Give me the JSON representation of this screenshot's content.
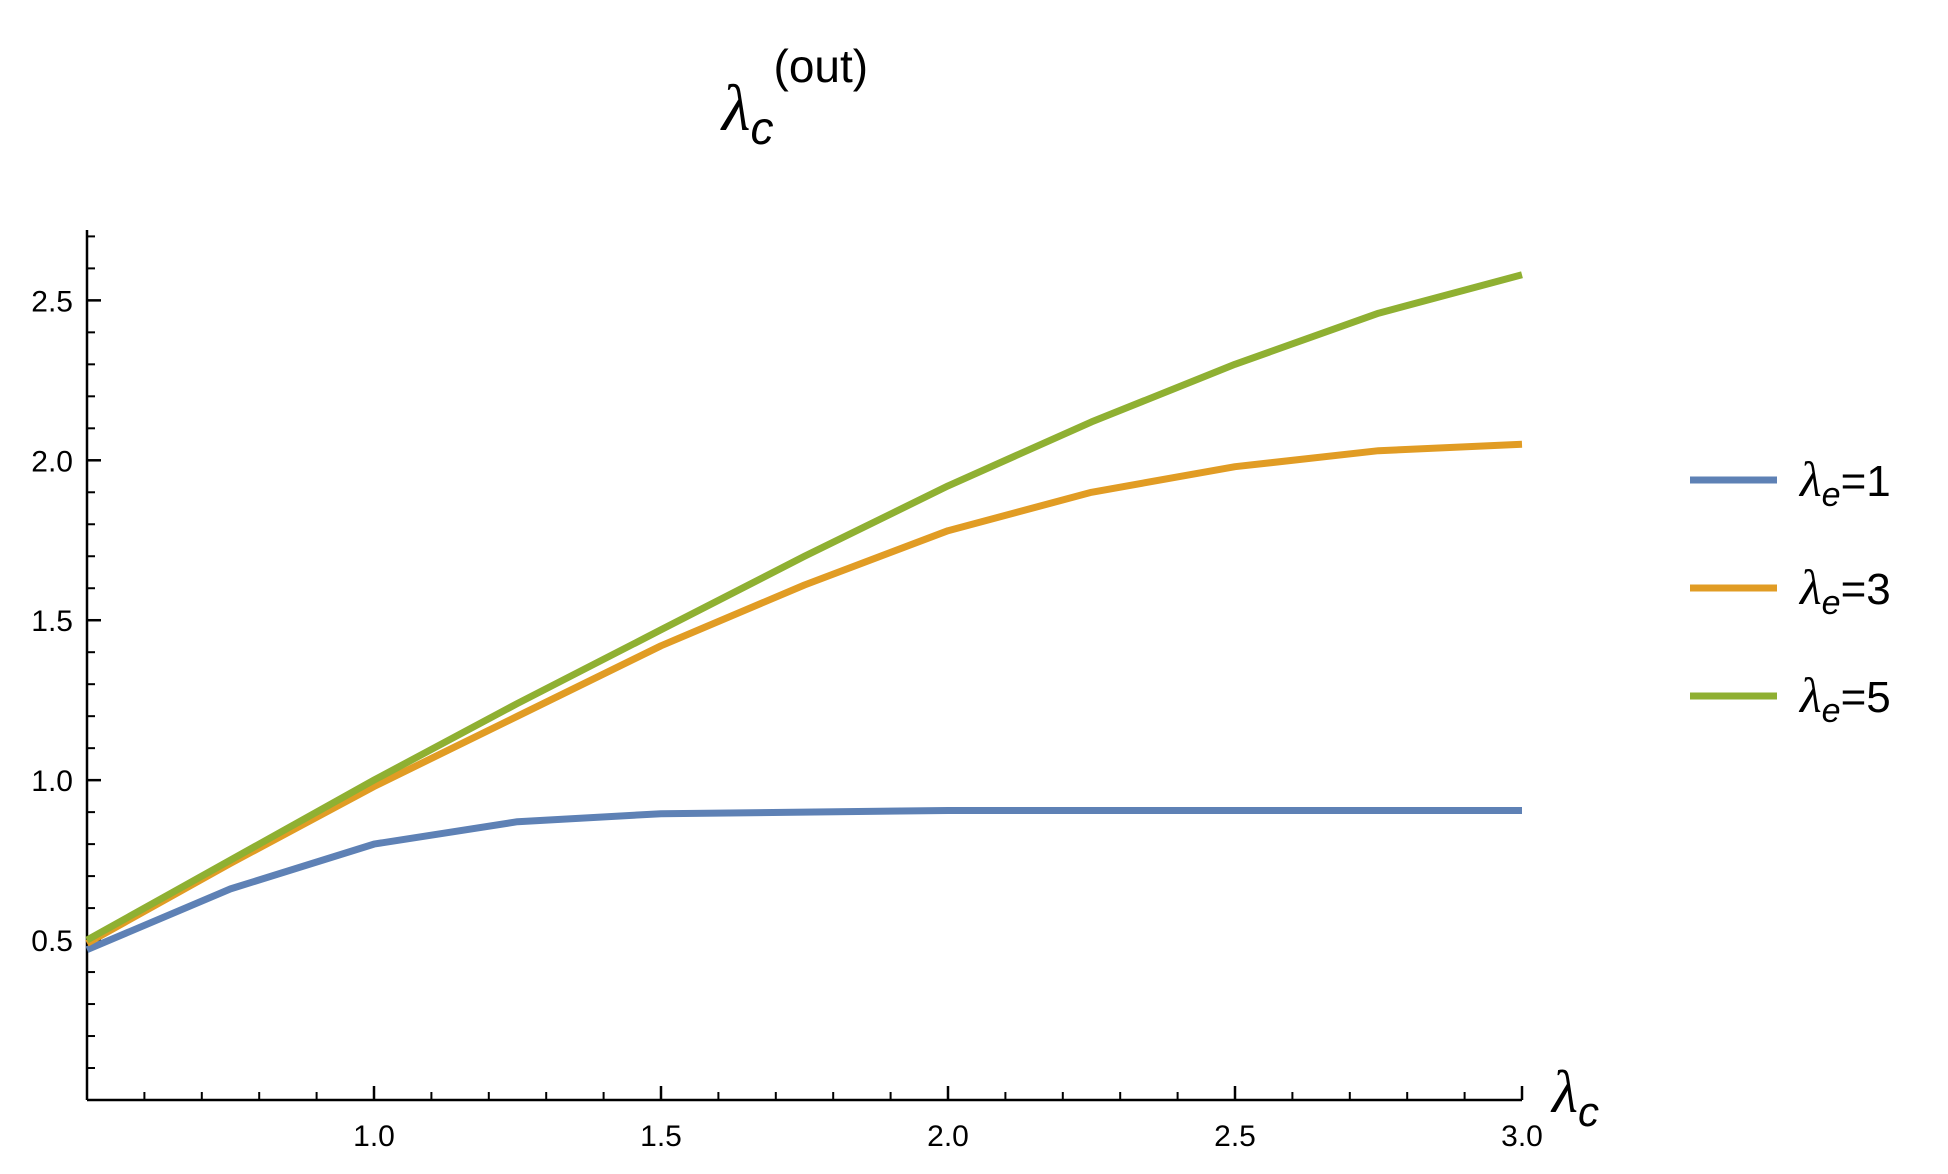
{
  "chart_data": {
    "type": "line",
    "title": {
      "symbol": "λ",
      "subscript": "c",
      "superscript": "(out)"
    },
    "xlabel": {
      "symbol": "λ",
      "subscript": "c"
    },
    "ylabel": "",
    "xlim": [
      0.5,
      3.0
    ],
    "ylim": [
      0.0,
      2.72
    ],
    "x_major_ticks": [
      1.0,
      1.5,
      2.0,
      2.5,
      3.0
    ],
    "x_tick_labels": [
      "1.0",
      "1.5",
      "2.0",
      "2.5",
      "3.0"
    ],
    "y_major_ticks": [
      0.5,
      1.0,
      1.5,
      2.0,
      2.5
    ],
    "y_tick_labels": [
      "0.5",
      "1.0",
      "1.5",
      "2.0",
      "2.5"
    ],
    "grid": false,
    "legend_position": "right",
    "x": [
      0.5,
      0.75,
      1.0,
      1.25,
      1.5,
      1.75,
      2.0,
      2.25,
      2.5,
      2.75,
      3.0
    ],
    "series": [
      {
        "name": "λe=1",
        "label_symbol": "λ",
        "label_subscript": "e",
        "label_value": "=1",
        "color": "#5e81b5",
        "values": [
          0.47,
          0.66,
          0.8,
          0.87,
          0.895,
          0.9,
          0.905,
          0.905,
          0.905,
          0.905,
          0.905
        ]
      },
      {
        "name": "λe=3",
        "label_symbol": "λ",
        "label_subscript": "e",
        "label_value": "=3",
        "color": "#e19c24",
        "values": [
          0.49,
          0.74,
          0.98,
          1.2,
          1.42,
          1.61,
          1.78,
          1.9,
          1.98,
          2.03,
          2.05
        ]
      },
      {
        "name": "λe=5",
        "label_symbol": "λ",
        "label_subscript": "e",
        "label_value": "=5",
        "color": "#8fb032",
        "values": [
          0.5,
          0.75,
          1.0,
          1.24,
          1.47,
          1.7,
          1.92,
          2.12,
          2.3,
          2.46,
          2.58
        ]
      }
    ]
  }
}
